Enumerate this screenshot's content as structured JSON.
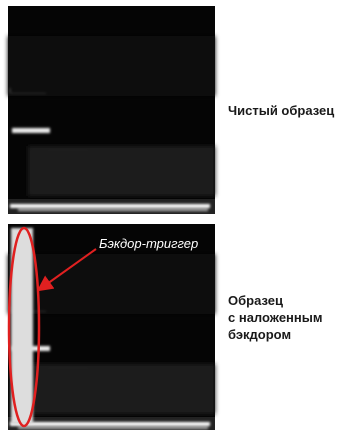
{
  "panels": [
    {
      "label": "Чистый образец"
    },
    {
      "label_lines": [
        "Образец",
        "с наложенным",
        "бэкдором"
      ],
      "annotation": "Бэкдор-триггер"
    }
  ]
}
